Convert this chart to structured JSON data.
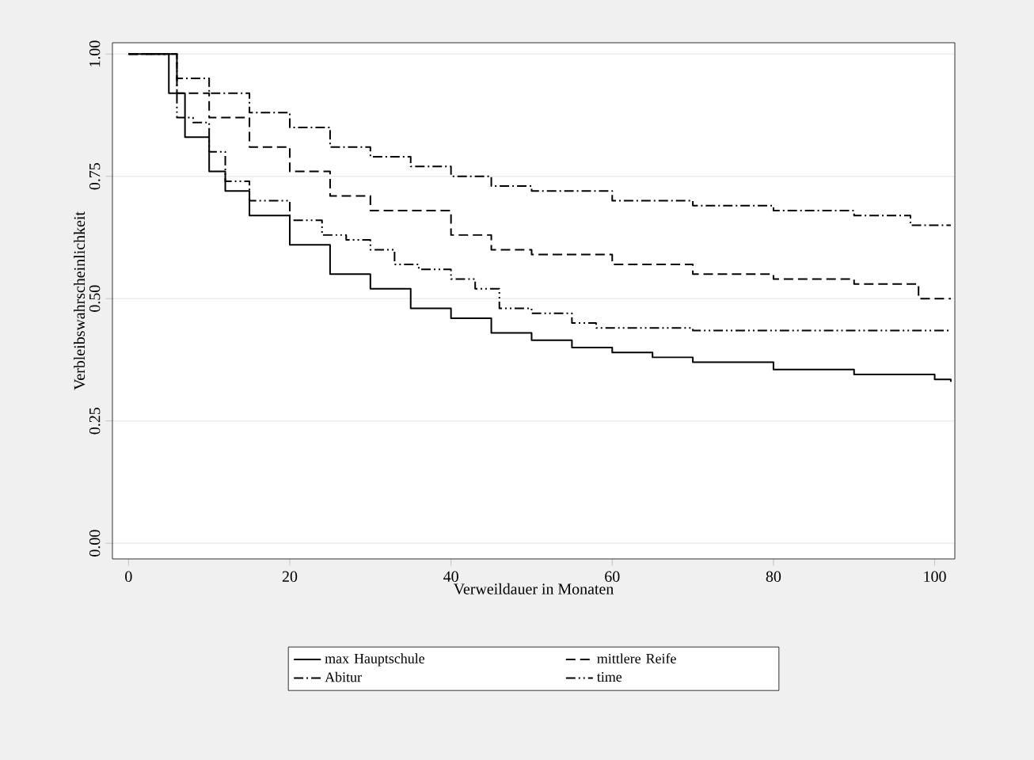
{
  "chart_data": {
    "type": "step",
    "xlabel": "Verweildauer in Monaten",
    "ylabel": "Verbleibswahrscheinlichkeit",
    "xlim": [
      -2,
      102.5
    ],
    "ylim": [
      -0.032,
      1.023
    ],
    "xticks": [
      0,
      20,
      40,
      60,
      80,
      100
    ],
    "yticks": [
      {
        "value": 0,
        "label": "0.00"
      },
      {
        "value": 0.25,
        "label": "0.25"
      },
      {
        "value": 0.5,
        "label": "0.50"
      },
      {
        "value": 0.75,
        "label": "0.75"
      },
      {
        "value": 1,
        "label": "1.00"
      }
    ],
    "grid": "y",
    "legend": "bottom",
    "series": [
      {
        "name": "max Hauptschule",
        "color": "#000000",
        "line_style": "solid",
        "x": [
          0,
          3,
          5,
          7,
          10,
          12,
          15,
          20,
          25,
          30,
          35,
          40,
          45,
          50,
          55,
          60,
          65,
          70,
          80,
          90,
          100,
          102
        ],
        "values": [
          1.0,
          1.0,
          0.92,
          0.83,
          0.76,
          0.72,
          0.67,
          0.61,
          0.55,
          0.52,
          0.48,
          0.46,
          0.43,
          0.415,
          0.4,
          0.39,
          0.38,
          0.37,
          0.355,
          0.345,
          0.335,
          0.33
        ]
      },
      {
        "name": "mittlere Reife",
        "color": "#000000",
        "line_style": "dashed",
        "x": [
          0,
          3,
          6,
          10,
          15,
          20,
          25,
          30,
          40,
          45,
          50,
          60,
          70,
          80,
          90,
          98,
          102
        ],
        "values": [
          1.0,
          1.0,
          0.92,
          0.87,
          0.81,
          0.76,
          0.71,
          0.68,
          0.63,
          0.6,
          0.59,
          0.57,
          0.55,
          0.54,
          0.53,
          0.5,
          0.5
        ]
      },
      {
        "name": "Abitur",
        "color": "#000000",
        "line_style": "dashdot",
        "x": [
          0,
          3,
          6,
          10,
          15,
          20,
          25,
          30,
          35,
          40,
          45,
          50,
          60,
          70,
          80,
          90,
          97,
          102
        ],
        "values": [
          1.0,
          1.0,
          0.95,
          0.92,
          0.88,
          0.85,
          0.81,
          0.79,
          0.77,
          0.75,
          0.73,
          0.72,
          0.7,
          0.69,
          0.68,
          0.67,
          0.65,
          0.65
        ]
      },
      {
        "name": "time",
        "color": "#000000",
        "line_style": "dashdotdot",
        "x": [
          0,
          3,
          6,
          8,
          10,
          12,
          15,
          20,
          24,
          27,
          30,
          33,
          36,
          40,
          43,
          46,
          50,
          55,
          58,
          70,
          102
        ],
        "values": [
          1.0,
          1.0,
          0.87,
          0.86,
          0.8,
          0.74,
          0.7,
          0.66,
          0.63,
          0.62,
          0.6,
          0.57,
          0.56,
          0.54,
          0.52,
          0.48,
          0.47,
          0.45,
          0.44,
          0.435,
          0.435
        ]
      }
    ]
  }
}
